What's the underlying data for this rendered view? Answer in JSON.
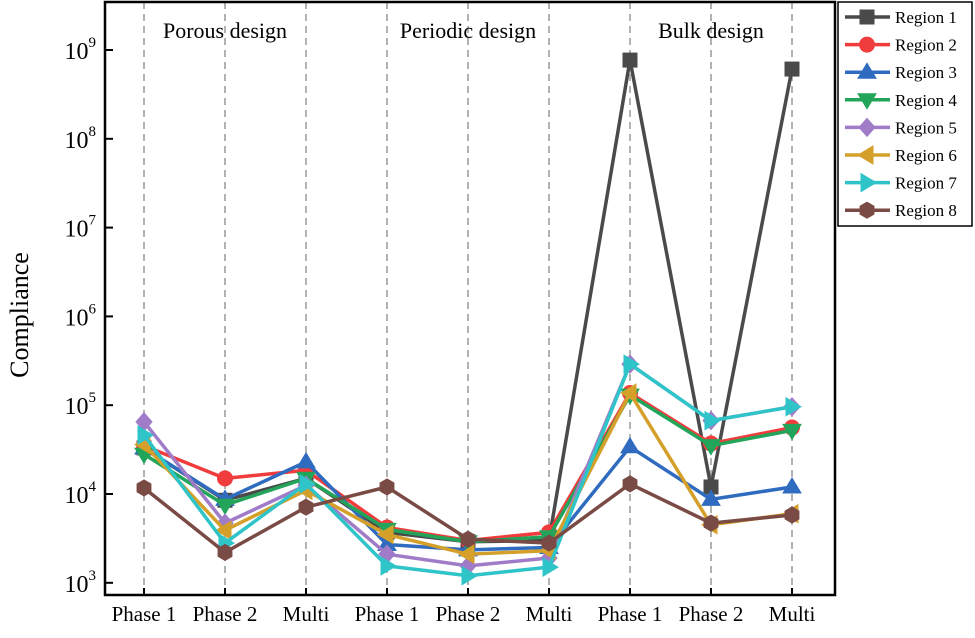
{
  "chart_data": {
    "type": "line",
    "title": "",
    "xlabel": "",
    "ylabel": "Compliance",
    "yscale": "log",
    "ylim": [
      1000,
      1500000000
    ],
    "yticks": [
      3,
      4,
      5,
      6,
      7,
      8,
      9
    ],
    "grid": false,
    "legend_placement": "outside-top-right",
    "categories": [
      "Phase 1",
      "Phase 2",
      "Multi",
      "Phase 1",
      "Phase 2",
      "Multi",
      "Phase 1",
      "Phase 2",
      "Multi"
    ],
    "groups": [
      {
        "label": "Porous design",
        "span": [
          0,
          2
        ]
      },
      {
        "label": "Periodic design",
        "span": [
          3,
          5
        ]
      },
      {
        "label": "Bulk design",
        "span": [
          6,
          8
        ]
      }
    ],
    "series": [
      {
        "name": "Region 1",
        "color": "#4a4a4a",
        "marker": "square",
        "values": [
          33000,
          8500,
          15000,
          3700,
          2900,
          3000,
          770000000,
          12000,
          610000000
        ]
      },
      {
        "name": "Region 2",
        "color": "#f03c3c",
        "marker": "circle",
        "values": [
          35000,
          15000,
          18500,
          4200,
          3000,
          3700,
          137000,
          37000,
          56000
        ]
      },
      {
        "name": "Region 3",
        "color": "#2f6bbf",
        "marker": "triangle-up",
        "values": [
          33000,
          8700,
          23000,
          2700,
          2350,
          2500,
          34000,
          8700,
          12000
        ]
      },
      {
        "name": "Region 4",
        "color": "#22a55a",
        "marker": "triangle-down",
        "values": [
          28000,
          7500,
          15000,
          4000,
          2900,
          3300,
          130000,
          35000,
          52000
        ]
      },
      {
        "name": "Region 5",
        "color": "#a07cc8",
        "marker": "diamond",
        "values": [
          65000,
          4700,
          12500,
          2100,
          1550,
          1900,
          290000,
          67000,
          96000
        ]
      },
      {
        "name": "Region 6",
        "color": "#d4a02a",
        "marker": "triangle-left",
        "values": [
          36000,
          3900,
          11000,
          3500,
          2100,
          2300,
          137000,
          4500,
          6000
        ]
      },
      {
        "name": "Region 7",
        "color": "#2ec4c8",
        "marker": "triangle-right",
        "values": [
          46000,
          2800,
          13000,
          1550,
          1200,
          1500,
          290000,
          67000,
          96000
        ]
      },
      {
        "name": "Region 8",
        "color": "#7a4a44",
        "marker": "hexagon",
        "values": [
          11700,
          2200,
          7100,
          12000,
          3100,
          2800,
          13000,
          4700,
          5800
        ]
      }
    ]
  }
}
